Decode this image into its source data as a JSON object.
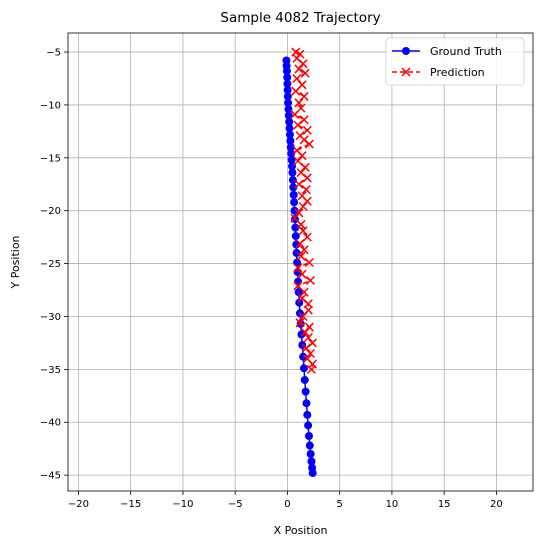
{
  "chart_data": {
    "type": "line",
    "title": "Sample 4082 Trajectory",
    "xlabel": "X Position",
    "ylabel": "Y Position",
    "xlim": [
      -21,
      23.5
    ],
    "ylim": [
      -46.5,
      -3.2
    ],
    "xticks": [
      -20,
      -15,
      -10,
      -5,
      0,
      5,
      10,
      15,
      20
    ],
    "yticks": [
      -45,
      -40,
      -35,
      -30,
      -25,
      -20,
      -15,
      -10,
      -5
    ],
    "grid": true,
    "legend": "top-right",
    "series": [
      {
        "name": "Ground Truth",
        "color": "#0000ff",
        "marker": "circle",
        "line": "solid",
        "points": [
          [
            -0.1,
            -5.8
          ],
          [
            -0.08,
            -6.3
          ],
          [
            -0.05,
            -6.8
          ],
          [
            -0.02,
            -7.4
          ],
          [
            0.0,
            -8.0
          ],
          [
            0.02,
            -8.6
          ],
          [
            0.04,
            -9.2
          ],
          [
            0.06,
            -9.8
          ],
          [
            0.1,
            -10.4
          ],
          [
            0.13,
            -11.0
          ],
          [
            0.17,
            -11.6
          ],
          [
            0.2,
            -12.2
          ],
          [
            0.24,
            -12.8
          ],
          [
            0.28,
            -13.4
          ],
          [
            0.32,
            -14.0
          ],
          [
            0.36,
            -14.6
          ],
          [
            0.4,
            -15.2
          ],
          [
            0.44,
            -15.8
          ],
          [
            0.48,
            -16.4
          ],
          [
            0.52,
            -17.1
          ],
          [
            0.56,
            -17.8
          ],
          [
            0.6,
            -18.5
          ],
          [
            0.64,
            -19.2
          ],
          [
            0.68,
            -20.0
          ],
          [
            0.72,
            -20.8
          ],
          [
            0.76,
            -21.6
          ],
          [
            0.8,
            -22.4
          ],
          [
            0.84,
            -23.2
          ],
          [
            0.88,
            -24.0
          ],
          [
            0.92,
            -24.9
          ],
          [
            0.97,
            -25.8
          ],
          [
            1.02,
            -26.7
          ],
          [
            1.07,
            -27.7
          ],
          [
            1.13,
            -28.7
          ],
          [
            1.2,
            -29.7
          ],
          [
            1.27,
            -30.7
          ],
          [
            1.34,
            -31.7
          ],
          [
            1.42,
            -32.7
          ],
          [
            1.5,
            -33.8
          ],
          [
            1.58,
            -34.9
          ],
          [
            1.66,
            -36.0
          ],
          [
            1.74,
            -37.1
          ],
          [
            1.82,
            -38.2
          ],
          [
            1.9,
            -39.3
          ],
          [
            1.98,
            -40.3
          ],
          [
            2.06,
            -41.3
          ],
          [
            2.14,
            -42.2
          ],
          [
            2.22,
            -43.0
          ],
          [
            2.3,
            -43.7
          ],
          [
            2.36,
            -44.3
          ],
          [
            2.42,
            -44.8
          ]
        ]
      },
      {
        "name": "Prediction",
        "color": "#ff0000",
        "marker": "x",
        "line": "dashed",
        "points": [
          [
            0.8,
            -5.0
          ],
          [
            1.2,
            -5.2
          ],
          [
            0.9,
            -5.6
          ],
          [
            1.5,
            -6.1
          ],
          [
            1.1,
            -6.6
          ],
          [
            1.7,
            -7.0
          ],
          [
            0.9,
            -7.5
          ],
          [
            1.4,
            -8.1
          ],
          [
            0.8,
            -8.7
          ],
          [
            1.6,
            -9.2
          ],
          [
            1.1,
            -9.8
          ],
          [
            1.3,
            -10.3
          ],
          [
            0.7,
            -10.9
          ],
          [
            1.6,
            -11.4
          ],
          [
            1.0,
            -11.9
          ],
          [
            1.9,
            -12.4
          ],
          [
            1.2,
            -12.9
          ],
          [
            1.6,
            -13.3
          ],
          [
            2.1,
            -13.7
          ],
          [
            0.9,
            -14.3
          ],
          [
            1.4,
            -14.8
          ],
          [
            1.0,
            -15.3
          ],
          [
            1.7,
            -15.9
          ],
          [
            1.3,
            -16.4
          ],
          [
            1.9,
            -16.9
          ],
          [
            1.1,
            -17.5
          ],
          [
            1.8,
            -18.0
          ],
          [
            1.4,
            -18.6
          ],
          [
            1.9,
            -19.1
          ],
          [
            1.5,
            -19.6
          ],
          [
            1.1,
            -20.2
          ],
          [
            0.7,
            -20.7
          ],
          [
            1.3,
            -21.3
          ],
          [
            1.5,
            -21.9
          ],
          [
            1.9,
            -22.5
          ],
          [
            1.2,
            -23.1
          ],
          [
            1.6,
            -23.7
          ],
          [
            1.3,
            -24.3
          ],
          [
            2.1,
            -24.9
          ],
          [
            1.0,
            -25.4
          ],
          [
            1.4,
            -26.0
          ],
          [
            2.2,
            -26.6
          ],
          [
            1.0,
            -27.1
          ],
          [
            1.6,
            -27.7
          ],
          [
            1.4,
            -28.3
          ],
          [
            2.0,
            -28.8
          ],
          [
            2.0,
            -29.4
          ],
          [
            1.5,
            -30.0
          ],
          [
            1.2,
            -30.6
          ],
          [
            2.1,
            -31.0
          ],
          [
            1.7,
            -31.5
          ],
          [
            2.0,
            -32.0
          ],
          [
            2.4,
            -32.5
          ],
          [
            1.8,
            -33.0
          ],
          [
            2.2,
            -33.5
          ],
          [
            1.9,
            -34.0
          ],
          [
            2.4,
            -34.5
          ],
          [
            2.3,
            -35.0
          ]
        ]
      }
    ]
  }
}
